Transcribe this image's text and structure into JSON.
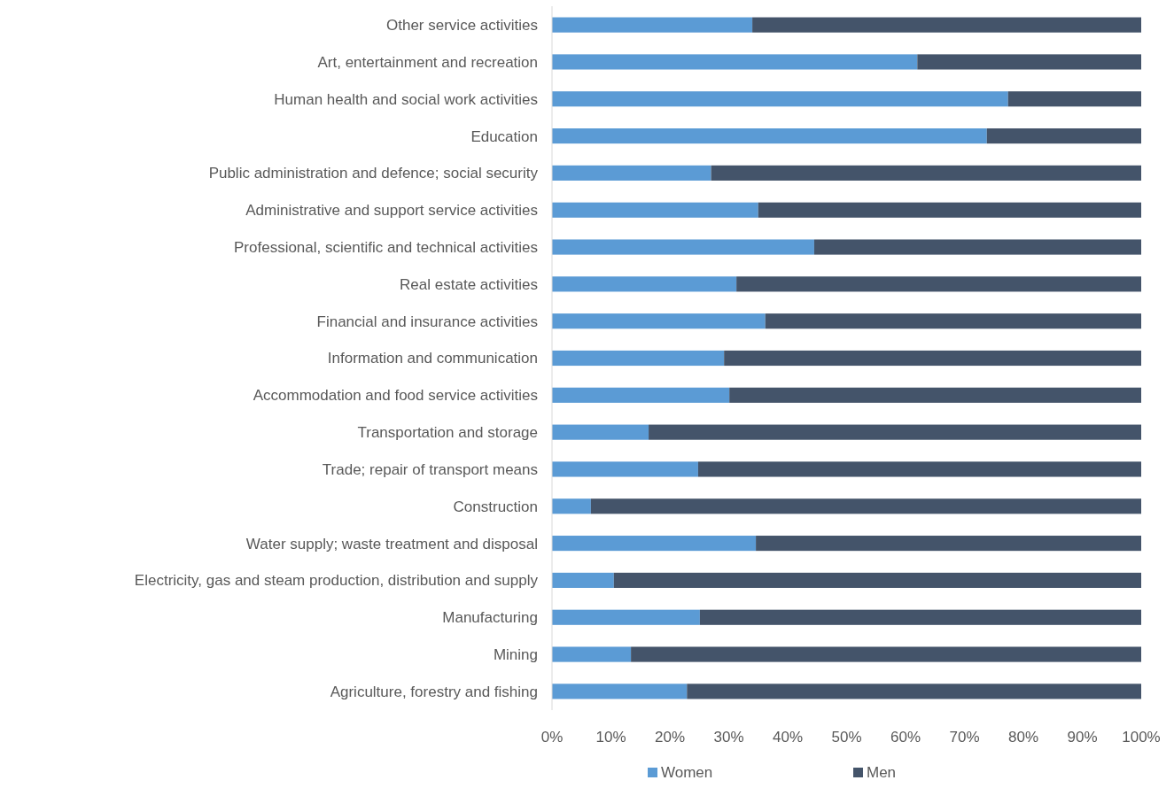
{
  "chart_data": {
    "type": "bar",
    "orientation": "horizontal",
    "stacked": true,
    "categories": [
      "Other service activities",
      "Art, entertainment and recreation",
      "Human health and social work activities",
      "Education",
      "Public administration and defence; social security",
      "Administrative and support service activities",
      "Professional, scientific and technical activities",
      "Real estate activities",
      "Financial and insurance activities",
      "Information and communication",
      "Accommodation and food service activities",
      "Transportation and storage",
      "Trade; repair of transport means",
      "Construction",
      "Water supply; waste treatment and disposal",
      "Electricity, gas and steam production, distribution and supply",
      "Manufacturing",
      "Mining",
      "Agriculture, forestry and fishing"
    ],
    "series": [
      {
        "name": "Women",
        "color": "#5b9bd5",
        "values": [
          34,
          62,
          77.4,
          73.8,
          27,
          35,
          44.5,
          31.3,
          36.2,
          29.2,
          30.1,
          16.4,
          24.8,
          6.6,
          34.6,
          10.5,
          25.1,
          13.4,
          22.9
        ]
      },
      {
        "name": "Men",
        "color": "#44546a",
        "values": [
          66,
          38,
          22.6,
          26.2,
          73,
          65,
          55.5,
          68.7,
          63.8,
          70.8,
          69.9,
          83.6,
          75.2,
          93.4,
          65.4,
          89.5,
          74.9,
          86.6,
          77.1
        ]
      }
    ],
    "xlim": [
      0,
      100
    ],
    "xticks": [
      {
        "value": 0,
        "label": "0%"
      },
      {
        "value": 10,
        "label": "10%"
      },
      {
        "value": 20,
        "label": "20%"
      },
      {
        "value": 30,
        "label": "30%"
      },
      {
        "value": 40,
        "label": "40%"
      },
      {
        "value": 50,
        "label": "50%"
      },
      {
        "value": 60,
        "label": "60%"
      },
      {
        "value": 70,
        "label": "70%"
      },
      {
        "value": 80,
        "label": "80%"
      },
      {
        "value": 90,
        "label": "90%"
      },
      {
        "value": 100,
        "label": "100%"
      }
    ],
    "grid": false,
    "legend": "bottom"
  }
}
